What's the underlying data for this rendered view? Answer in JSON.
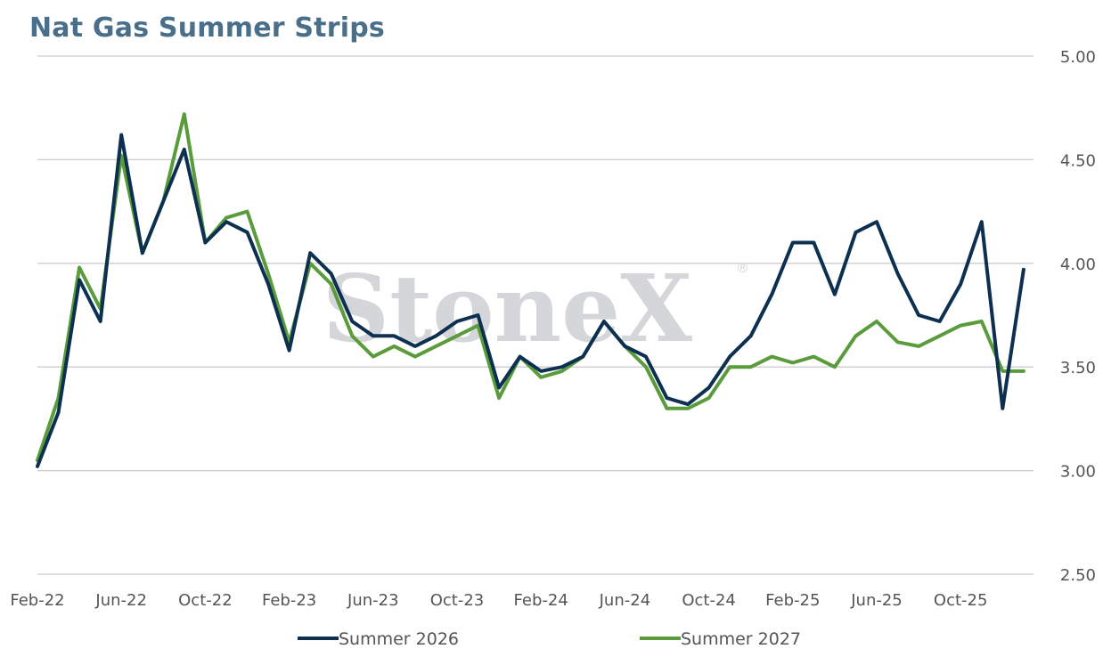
{
  "title": "Nat Gas Summer Strips",
  "watermark": "StoneX",
  "watermark_mark": "®",
  "colors": {
    "summer_2026": "#0d3051",
    "summer_2027": "#5a9b3c",
    "grid": "#cccccc",
    "title": "#4a6f8a"
  },
  "chart_data": {
    "type": "line",
    "title": "Nat Gas Summer Strips",
    "xlabel": "",
    "ylabel": "",
    "y_axis_side": "right",
    "ylim": [
      2.5,
      5.0
    ],
    "y_ticks": [
      "2.50",
      "3.00",
      "3.50",
      "4.00",
      "4.50",
      "5.00"
    ],
    "x_ticks": [
      "Feb-22",
      "Jun-22",
      "Oct-22",
      "Feb-23",
      "Jun-23",
      "Oct-23",
      "Feb-24",
      "Jun-24",
      "Oct-24",
      "Feb-25",
      "Jun-25",
      "Oct-25"
    ],
    "grid": "horizontal",
    "legend_position": "bottom",
    "series": [
      {
        "name": "Summer 2026",
        "points": [
          [
            "Feb-22",
            3.02
          ],
          [
            "Mar-22",
            3.28
          ],
          [
            "Apr-22",
            3.92
          ],
          [
            "May-22",
            3.72
          ],
          [
            "Jun-22",
            4.62
          ],
          [
            "Jul-22",
            4.05
          ],
          [
            "Aug-22",
            4.3
          ],
          [
            "Sep-22",
            4.55
          ],
          [
            "Oct-22",
            4.1
          ],
          [
            "Nov-22",
            4.2
          ],
          [
            "Dec-22",
            4.15
          ],
          [
            "Jan-23",
            3.9
          ],
          [
            "Feb-23",
            3.58
          ],
          [
            "Mar-23",
            4.05
          ],
          [
            "Apr-23",
            3.95
          ],
          [
            "May-23",
            3.72
          ],
          [
            "Jun-23",
            3.65
          ],
          [
            "Jul-23",
            3.65
          ],
          [
            "Aug-23",
            3.6
          ],
          [
            "Sep-23",
            3.65
          ],
          [
            "Oct-23",
            3.72
          ],
          [
            "Nov-23",
            3.75
          ],
          [
            "Dec-23",
            3.4
          ],
          [
            "Jan-24",
            3.55
          ],
          [
            "Feb-24",
            3.48
          ],
          [
            "Mar-24",
            3.5
          ],
          [
            "Apr-24",
            3.55
          ],
          [
            "May-24",
            3.72
          ],
          [
            "Jun-24",
            3.6
          ],
          [
            "Jul-24",
            3.55
          ],
          [
            "Aug-24",
            3.35
          ],
          [
            "Sep-24",
            3.32
          ],
          [
            "Oct-24",
            3.4
          ],
          [
            "Nov-24",
            3.55
          ],
          [
            "Dec-24",
            3.65
          ],
          [
            "Jan-25",
            3.85
          ],
          [
            "Feb-25",
            4.1
          ],
          [
            "Mar-25",
            4.1
          ],
          [
            "Apr-25",
            3.85
          ],
          [
            "May-25",
            4.15
          ],
          [
            "Jun-25",
            4.2
          ],
          [
            "Jul-25",
            3.95
          ],
          [
            "Aug-25",
            3.75
          ],
          [
            "Sep-25",
            3.72
          ],
          [
            "Oct-25",
            3.9
          ],
          [
            "Nov-25",
            4.2
          ],
          [
            "Dec-25",
            3.3
          ],
          [
            "Jan-26",
            3.97
          ]
        ]
      },
      {
        "name": "Summer 2027",
        "points": [
          [
            "Feb-22",
            3.05
          ],
          [
            "Mar-22",
            3.35
          ],
          [
            "Apr-22",
            3.98
          ],
          [
            "May-22",
            3.78
          ],
          [
            "Jun-22",
            4.52
          ],
          [
            "Jul-22",
            4.05
          ],
          [
            "Aug-22",
            4.3
          ],
          [
            "Sep-22",
            4.72
          ],
          [
            "Oct-22",
            4.1
          ],
          [
            "Nov-22",
            4.22
          ],
          [
            "Dec-22",
            4.25
          ],
          [
            "Jan-23",
            3.95
          ],
          [
            "Feb-23",
            3.62
          ],
          [
            "Mar-23",
            4.0
          ],
          [
            "Apr-23",
            3.9
          ],
          [
            "May-23",
            3.65
          ],
          [
            "Jun-23",
            3.55
          ],
          [
            "Jul-23",
            3.6
          ],
          [
            "Aug-23",
            3.55
          ],
          [
            "Sep-23",
            3.6
          ],
          [
            "Oct-23",
            3.65
          ],
          [
            "Nov-23",
            3.7
          ],
          [
            "Dec-23",
            3.35
          ],
          [
            "Jan-24",
            3.55
          ],
          [
            "Feb-24",
            3.45
          ],
          [
            "Mar-24",
            3.48
          ],
          [
            "Apr-24",
            3.55
          ],
          [
            "May-24",
            3.72
          ],
          [
            "Jun-24",
            3.6
          ],
          [
            "Jul-24",
            3.5
          ],
          [
            "Aug-24",
            3.3
          ],
          [
            "Sep-24",
            3.3
          ],
          [
            "Oct-24",
            3.35
          ],
          [
            "Nov-24",
            3.5
          ],
          [
            "Dec-24",
            3.5
          ],
          [
            "Jan-25",
            3.55
          ],
          [
            "Feb-25",
            3.52
          ],
          [
            "Mar-25",
            3.55
          ],
          [
            "Apr-25",
            3.5
          ],
          [
            "May-25",
            3.65
          ],
          [
            "Jun-25",
            3.72
          ],
          [
            "Jul-25",
            3.62
          ],
          [
            "Aug-25",
            3.6
          ],
          [
            "Sep-25",
            3.65
          ],
          [
            "Oct-25",
            3.7
          ],
          [
            "Nov-25",
            3.72
          ],
          [
            "Dec-25",
            3.48
          ],
          [
            "Jan-26",
            3.48
          ]
        ]
      }
    ]
  }
}
